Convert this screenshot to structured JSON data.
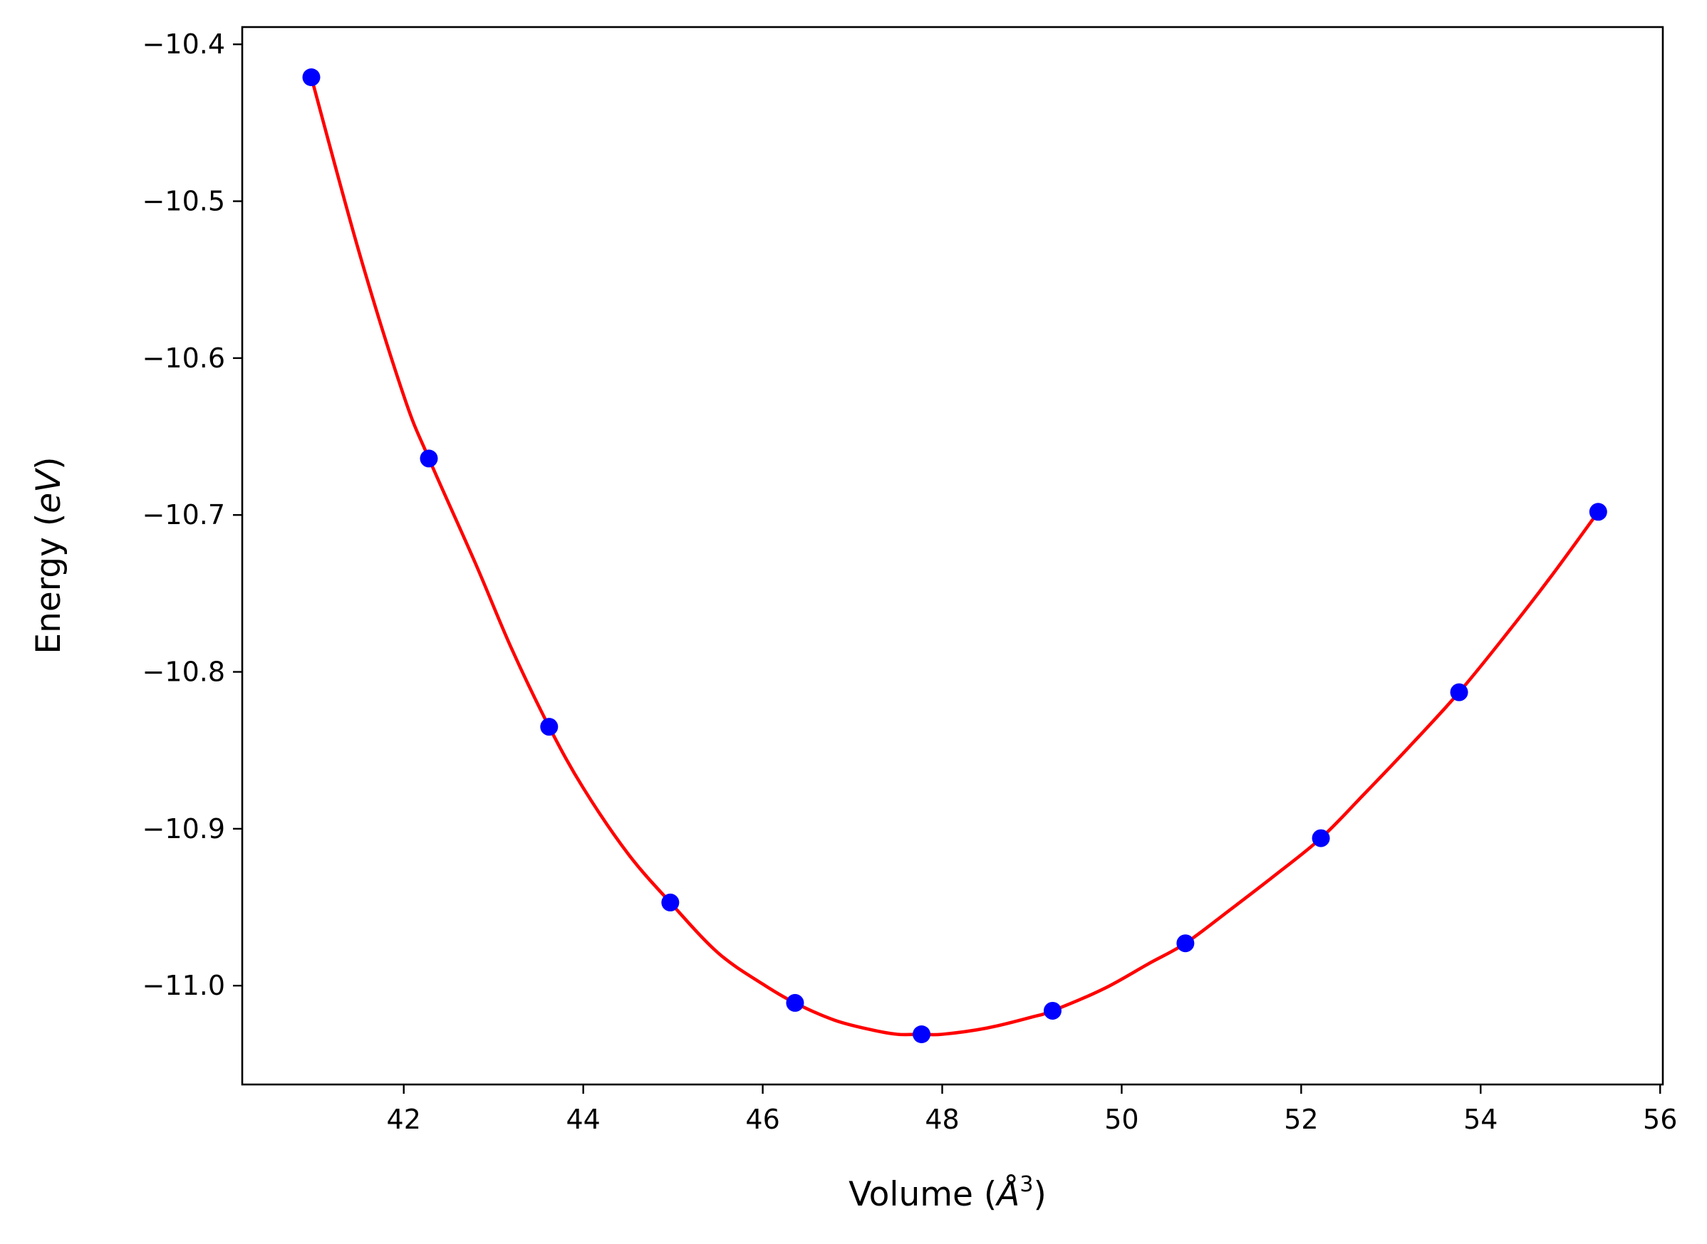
{
  "chart_data": {
    "type": "scatter",
    "title": "",
    "xlabel": {
      "prefix": "Volume (",
      "symbol": "Å",
      "superscript": "3",
      "suffix": ")"
    },
    "ylabel": {
      "prefix": "Energy (",
      "unit": "eV",
      "suffix": ")"
    },
    "xlim": [
      40.2,
      56.03
    ],
    "ylim": [
      -11.063,
      -10.389
    ],
    "x_ticks": [
      {
        "value": 42,
        "label": "42"
      },
      {
        "value": 44,
        "label": "44"
      },
      {
        "value": 46,
        "label": "46"
      },
      {
        "value": 48,
        "label": "48"
      },
      {
        "value": 50,
        "label": "50"
      },
      {
        "value": 52,
        "label": "52"
      },
      {
        "value": 54,
        "label": "54"
      },
      {
        "value": 56,
        "label": "56"
      }
    ],
    "y_ticks": [
      {
        "value": -10.4,
        "label": "−10.4"
      },
      {
        "value": -10.5,
        "label": "−10.5"
      },
      {
        "value": -10.6,
        "label": "−10.6"
      },
      {
        "value": -10.7,
        "label": "−10.7"
      },
      {
        "value": -10.8,
        "label": "−10.8"
      },
      {
        "value": -10.9,
        "label": "−10.9"
      },
      {
        "value": -11.0,
        "label": "−11.0"
      }
    ],
    "grid": false,
    "series": [
      {
        "kind": "points",
        "color": "#0000ff",
        "x": [
          40.97,
          42.28,
          43.62,
          44.97,
          46.36,
          47.77,
          49.23,
          50.71,
          52.22,
          53.76,
          55.31
        ],
        "y": [
          -10.421,
          -10.664,
          -10.835,
          -10.947,
          -11.011,
          -11.031,
          -11.016,
          -10.973,
          -10.906,
          -10.813,
          -10.698
        ]
      },
      {
        "kind": "fit-line",
        "color": "#ff0000",
        "x": [
          40.97,
          41.5,
          42.0,
          42.28,
          42.8,
          43.2,
          43.62,
          44.0,
          44.5,
          44.97,
          45.5,
          46.0,
          46.36,
          46.8,
          47.2,
          47.5,
          47.77,
          48.0,
          48.5,
          49.0,
          49.23,
          49.8,
          50.3,
          50.71,
          51.2,
          51.7,
          52.22,
          52.7,
          53.2,
          53.76,
          54.3,
          54.8,
          55.31
        ],
        "y": [
          -10.421,
          -10.532,
          -10.624,
          -10.664,
          -10.731,
          -10.785,
          -10.835,
          -10.874,
          -10.916,
          -10.947,
          -10.979,
          -10.999,
          -11.011,
          -11.022,
          -11.028,
          -11.031,
          -11.031,
          -11.031,
          -11.027,
          -11.02,
          -11.016,
          -11.002,
          -10.986,
          -10.973,
          -10.952,
          -10.93,
          -10.906,
          -10.878,
          -10.848,
          -10.813,
          -10.775,
          -10.738,
          -10.698
        ]
      }
    ]
  }
}
